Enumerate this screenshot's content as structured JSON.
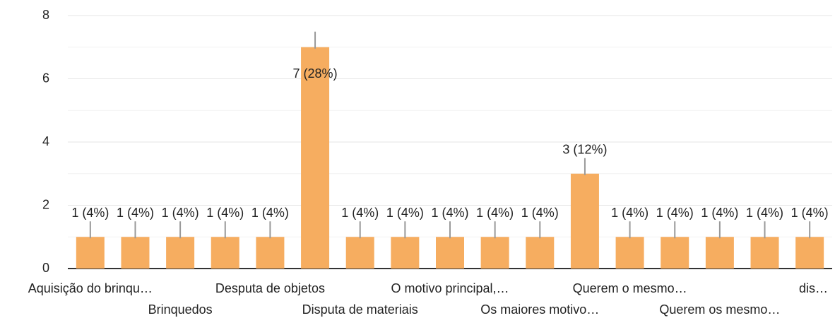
{
  "chart_data": {
    "type": "bar",
    "categories": [
      "Aquisição do brinqu…",
      null,
      "Brinquedos",
      null,
      "Desputa de objetos",
      null,
      "Disputa de materiais",
      null,
      "O motivo principal,…",
      null,
      "Os maiores motivo…",
      null,
      "Querem o mesmo…",
      null,
      "Querem os mesmo…",
      null,
      "dis…"
    ],
    "values": [
      1,
      1,
      1,
      1,
      1,
      7,
      1,
      1,
      1,
      1,
      1,
      3,
      1,
      1,
      1,
      1,
      1
    ],
    "value_labels": [
      "1 (4%)",
      "1 (4%)",
      "1 (4%)",
      "1 (4%)",
      "1 (4%)",
      "7 (28%)",
      "1 (4%)",
      "1 (4%)",
      "1 (4%)",
      "1 (4%)",
      "1 (4%)",
      "3 (12%)",
      "1 (4%)",
      "1 (4%)",
      "1 (4%)",
      "1 (4%)",
      "1 (4%)"
    ],
    "color": "#f6ad60",
    "ylim": [
      0,
      8
    ],
    "yticks": [
      0,
      2,
      4,
      6,
      8
    ],
    "grid": true
  }
}
